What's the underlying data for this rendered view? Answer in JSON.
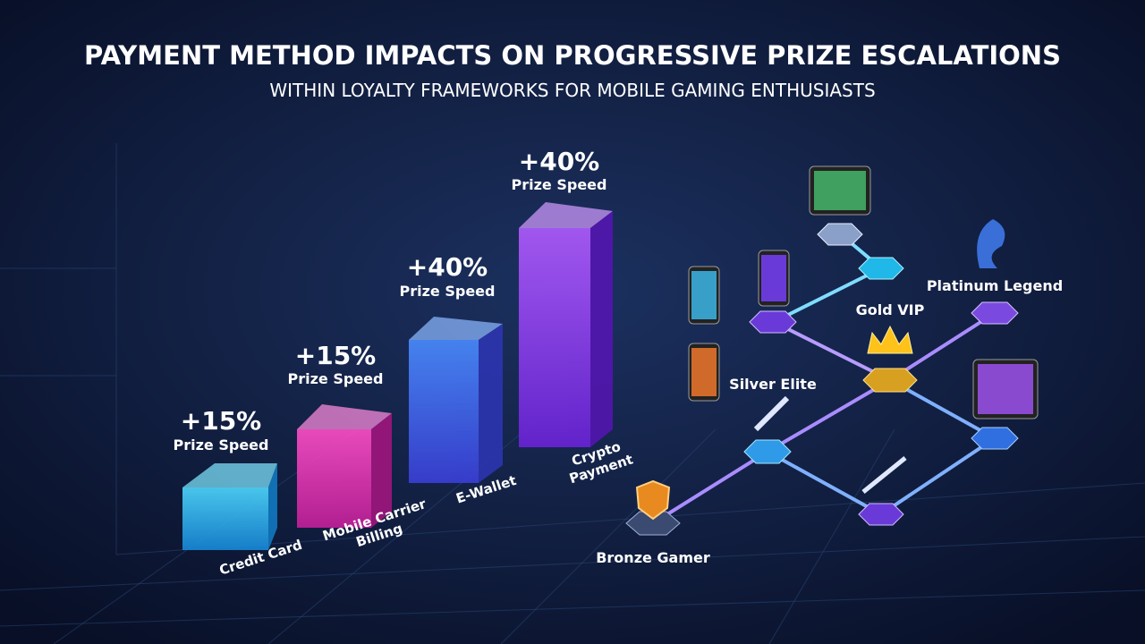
{
  "header": {
    "title": "PAYMENT METHOD IMPACTS ON PROGRESSIVE PRIZE ESCALATIONS",
    "subtitle": "WITHIN LOYALTY FRAMEWORKS FOR MOBILE GAMING ENTHUSIASTS"
  },
  "bars": [
    {
      "boost": "+15%",
      "caption": "Prize Speed",
      "method": [
        "Credit Card"
      ]
    },
    {
      "boost": "+15%",
      "caption": "Prize Speed",
      "method": [
        "Mobile Carrier",
        "Billing"
      ]
    },
    {
      "boost": "+40%",
      "caption": "Prize Speed",
      "method": [
        "E-Wallet"
      ]
    },
    {
      "boost": "+40%",
      "caption": "Prize Speed",
      "method": [
        "Crypto",
        "Payment"
      ]
    }
  ],
  "tiers": [
    {
      "label": "Bronze Gamer"
    },
    {
      "label": "Silver Elite"
    },
    {
      "label": "Gold VIP"
    },
    {
      "label": "Platinum Legend"
    }
  ]
}
